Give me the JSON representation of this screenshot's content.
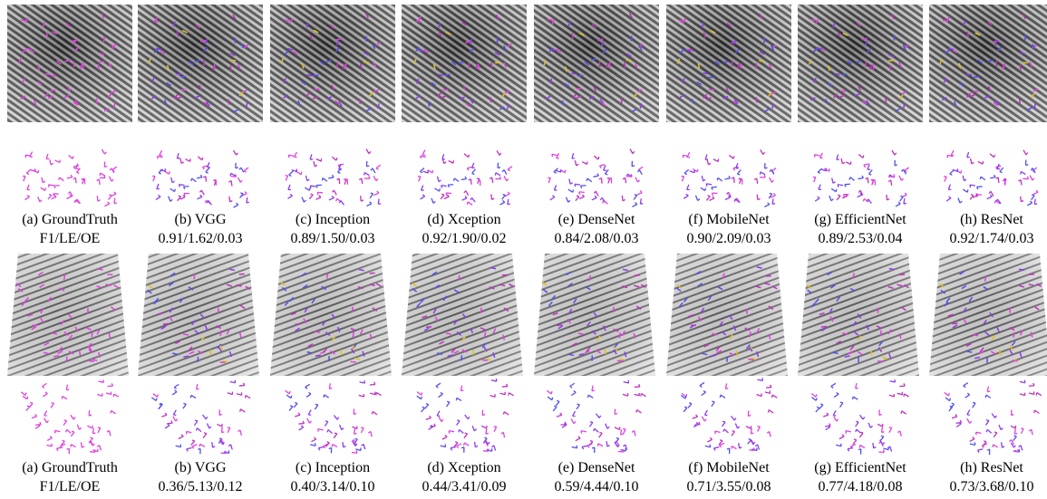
{
  "groups": [
    {
      "captions": [
        {
          "label": "(a) GroundTruth",
          "metrics": "F1/LE/OE"
        },
        {
          "label": "(b) VGG",
          "metrics": "0.91/1.62/0.03"
        },
        {
          "label": "(c) Inception",
          "metrics": "0.89/1.50/0.03"
        },
        {
          "label": "(d) Xception",
          "metrics": "0.92/1.90/0.02"
        },
        {
          "label": "(e) DenseNet",
          "metrics": "0.84/2.08/0.03"
        },
        {
          "label": "(f) MobileNet",
          "metrics": "0.90/2.09/0.03"
        },
        {
          "label": "(g) EfficientNet",
          "metrics": "0.89/2.53/0.04"
        },
        {
          "label": "(h) ResNet",
          "metrics": "0.92/1.74/0.03"
        }
      ]
    },
    {
      "captions": [
        {
          "label": "(a) GroundTruth",
          "metrics": "F1/LE/OE"
        },
        {
          "label": "(b) VGG",
          "metrics": "0.36/5.13/0.12"
        },
        {
          "label": "(c) Inception",
          "metrics": "0.40/3.14/0.10"
        },
        {
          "label": "(d) Xception",
          "metrics": "0.44/3.41/0.09"
        },
        {
          "label": "(e) DenseNet",
          "metrics": "0.59/4.44/0.10"
        },
        {
          "label": "(f) MobileNet",
          "metrics": "0.71/3.55/0.08"
        },
        {
          "label": "(g) EfficientNet",
          "metrics": "0.77/4.18/0.08"
        },
        {
          "label": "(h) ResNet",
          "metrics": "0.73/3.68/0.10"
        }
      ]
    }
  ]
}
